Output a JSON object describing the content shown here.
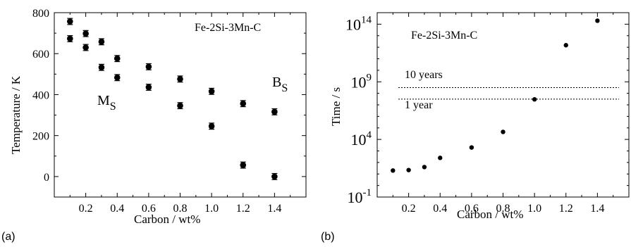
{
  "chart_data": [
    {
      "type": "scatter",
      "panel_label": "(a)",
      "annotation": "Fe-2Si-3Mn-C",
      "xlabel": "Carbon / wt%",
      "ylabel": "Temperature / K",
      "xlim": [
        0.0,
        1.6
      ],
      "ylim": [
        -100,
        800
      ],
      "x_ticks": [
        "0.2",
        "0.4",
        "0.6",
        "0.8",
        "1.0",
        "1.2",
        "1.4"
      ],
      "y_ticks": [
        "0",
        "200",
        "400",
        "600",
        "800"
      ],
      "series": [
        {
          "name": "B",
          "name_subscript": "S",
          "points": [
            {
              "x": 0.1,
              "y": 757,
              "err": 15
            },
            {
              "x": 0.2,
              "y": 698,
              "err": 15
            },
            {
              "x": 0.3,
              "y": 658,
              "err": 15
            },
            {
              "x": 0.4,
              "y": 576,
              "err": 15
            },
            {
              "x": 0.6,
              "y": 536,
              "err": 15
            },
            {
              "x": 0.8,
              "y": 476,
              "err": 15
            },
            {
              "x": 1.0,
              "y": 416,
              "err": 15
            },
            {
              "x": 1.2,
              "y": 356,
              "err": 15
            },
            {
              "x": 1.4,
              "y": 316,
              "err": 15
            }
          ]
        },
        {
          "name": "M",
          "name_subscript": "S",
          "points": [
            {
              "x": 0.1,
              "y": 673,
              "err": 15
            },
            {
              "x": 0.2,
              "y": 630,
              "err": 15
            },
            {
              "x": 0.3,
              "y": 533,
              "err": 15
            },
            {
              "x": 0.4,
              "y": 483,
              "err": 15
            },
            {
              "x": 0.6,
              "y": 436,
              "err": 15
            },
            {
              "x": 0.8,
              "y": 346,
              "err": 15
            },
            {
              "x": 1.0,
              "y": 246,
              "err": 15
            },
            {
              "x": 1.2,
              "y": 56,
              "err": 15
            },
            {
              "x": 1.4,
              "y": 0,
              "err": 15
            }
          ]
        }
      ]
    },
    {
      "type": "scatter",
      "panel_label": "(b)",
      "annotation": "Fe-2Si-3Mn-C",
      "xlabel": "Carbon / wt%",
      "ylabel": "Time / s",
      "scale_y": "log",
      "xlim": [
        0.0,
        1.6
      ],
      "ylim_log10": [
        -1,
        15
      ],
      "x_ticks": [
        "0.2",
        "0.4",
        "0.6",
        "0.8",
        "1.0",
        "1.2",
        "1.4"
      ],
      "y_ticks": [
        {
          "base": "10",
          "exp": "-1"
        },
        {
          "base": "10",
          "exp": "4"
        },
        {
          "base": "10",
          "exp": "9"
        },
        {
          "base": "10",
          "exp": "14"
        }
      ],
      "reference_lines": [
        {
          "label": "10 years",
          "y": 315000000
        },
        {
          "label": "1 year",
          "y": 31500000
        }
      ],
      "points": [
        {
          "x": 0.1,
          "y": 20
        },
        {
          "x": 0.2,
          "y": 22
        },
        {
          "x": 0.3,
          "y": 40
        },
        {
          "x": 0.4,
          "y": 250
        },
        {
          "x": 0.6,
          "y": 2000
        },
        {
          "x": 0.8,
          "y": 45000
        },
        {
          "x": 1.0,
          "y": 30000000
        },
        {
          "x": 1.2,
          "y": 1500000000000
        },
        {
          "x": 1.4,
          "y": 200000000000000
        }
      ]
    }
  ]
}
